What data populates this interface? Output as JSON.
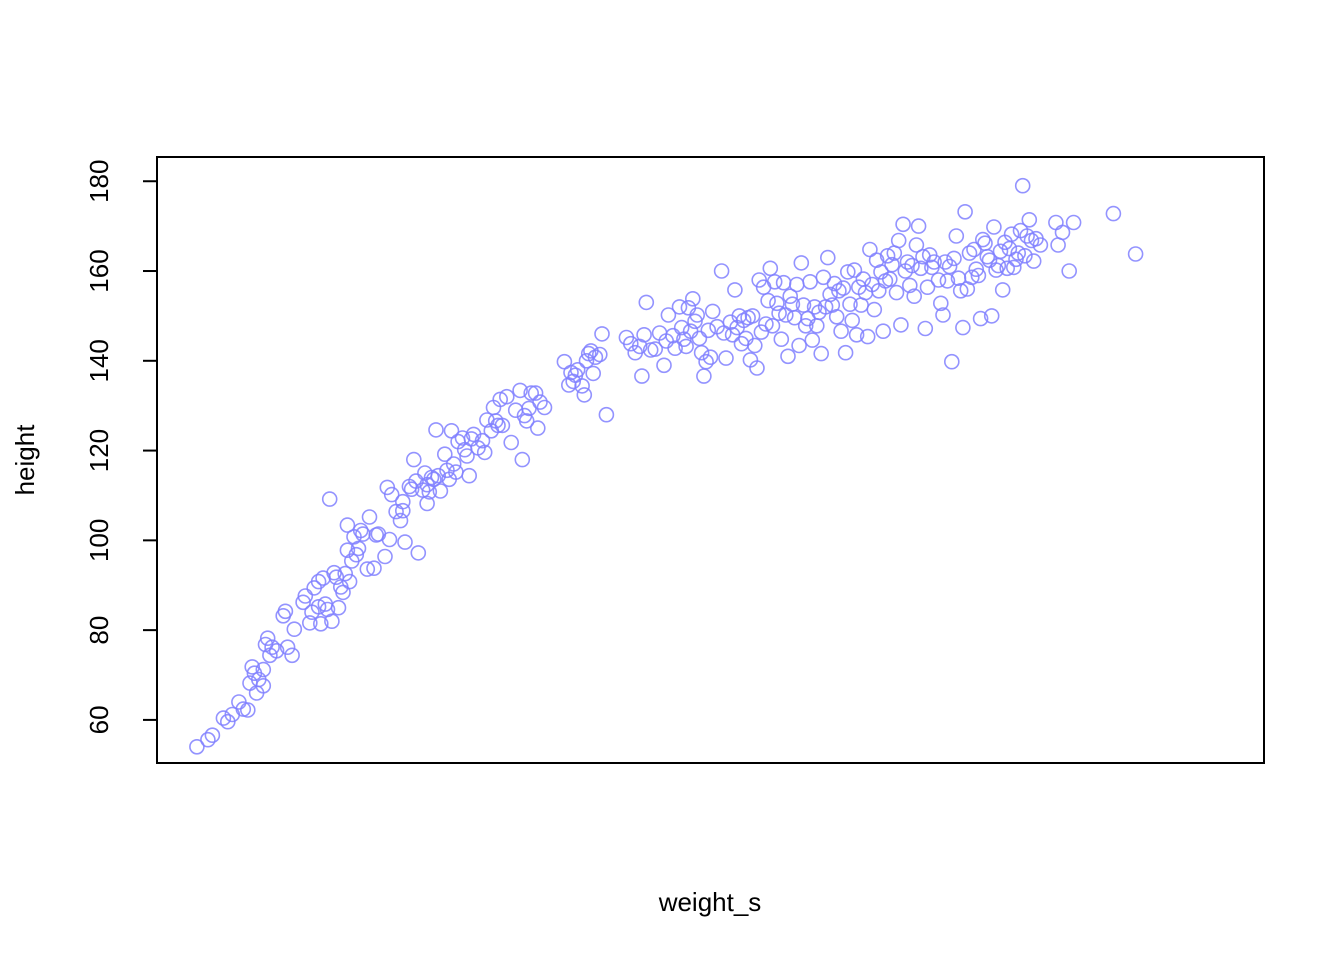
{
  "chart_data": {
    "type": "scatter",
    "title": "",
    "xlabel": "weight_s",
    "ylabel": "height",
    "xlim": [
      -2.2,
      2.8
    ],
    "ylim": [
      50.4,
      185.4
    ],
    "xticks_shown": false,
    "yticks": [
      60,
      80,
      100,
      120,
      140,
      160,
      180
    ],
    "grid": false,
    "legend": "none",
    "marker": "open-circle",
    "point_color": "#8080ff",
    "series": [
      {
        "points": [
          [
            -2.02,
            54.0
          ],
          [
            -1.97,
            55.6
          ],
          [
            -1.95,
            56.6
          ],
          [
            -1.9,
            60.4
          ],
          [
            -1.88,
            59.6
          ],
          [
            -1.86,
            61.2
          ],
          [
            -1.83,
            64.0
          ],
          [
            -1.81,
            62.4
          ],
          [
            -1.79,
            62.2
          ],
          [
            -1.78,
            68.2
          ],
          [
            -1.77,
            71.8
          ],
          [
            -1.76,
            70.4
          ],
          [
            -1.75,
            66.0
          ],
          [
            -1.74,
            69.0
          ],
          [
            -1.72,
            67.6
          ],
          [
            -1.72,
            71.2
          ],
          [
            -1.71,
            76.8
          ],
          [
            -1.7,
            78.2
          ],
          [
            -1.69,
            74.4
          ],
          [
            -1.68,
            76.2
          ],
          [
            -1.66,
            75.4
          ],
          [
            -1.63,
            83.2
          ],
          [
            -1.62,
            84.2
          ],
          [
            -1.61,
            76.2
          ],
          [
            -1.59,
            74.4
          ],
          [
            -1.58,
            80.2
          ],
          [
            -1.54,
            86.2
          ],
          [
            -1.53,
            87.6
          ],
          [
            -1.51,
            81.6
          ],
          [
            -1.5,
            84.0
          ],
          [
            -1.49,
            89.4
          ],
          [
            -1.47,
            85.2
          ],
          [
            -1.47,
            90.8
          ],
          [
            -1.46,
            81.4
          ],
          [
            -1.45,
            91.6
          ],
          [
            -1.44,
            85.8
          ],
          [
            -1.43,
            84.6
          ],
          [
            -1.42,
            109.2
          ],
          [
            -1.41,
            82.0
          ],
          [
            -1.4,
            92.8
          ],
          [
            -1.39,
            91.8
          ],
          [
            -1.38,
            85.0
          ],
          [
            -1.37,
            89.6
          ],
          [
            -1.36,
            88.4
          ],
          [
            -1.35,
            92.6
          ],
          [
            -1.34,
            97.8
          ],
          [
            -1.34,
            103.4
          ],
          [
            -1.33,
            90.8
          ],
          [
            -1.32,
            95.4
          ],
          [
            -1.31,
            100.8
          ],
          [
            -1.3,
            96.8
          ],
          [
            -1.29,
            98.2
          ],
          [
            -1.28,
            102.2
          ],
          [
            -1.27,
            101.4
          ],
          [
            -1.25,
            93.6
          ],
          [
            -1.24,
            105.2
          ],
          [
            -1.22,
            93.8
          ],
          [
            -1.21,
            101.2
          ],
          [
            -1.2,
            101.4
          ],
          [
            -1.17,
            96.4
          ],
          [
            -1.16,
            111.8
          ],
          [
            -1.15,
            100.2
          ],
          [
            -1.14,
            110.2
          ],
          [
            -1.12,
            106.4
          ],
          [
            -1.1,
            104.4
          ],
          [
            -1.09,
            106.6
          ],
          [
            -1.09,
            108.6
          ],
          [
            -1.08,
            99.6
          ],
          [
            -1.06,
            112.0
          ],
          [
            -1.05,
            111.4
          ],
          [
            -1.04,
            118.0
          ],
          [
            -1.03,
            113.2
          ],
          [
            -1.02,
            97.2
          ],
          [
            -1.0,
            111.2
          ],
          [
            -0.99,
            115.0
          ],
          [
            -0.98,
            108.2
          ],
          [
            -0.98,
            112.4
          ],
          [
            -0.97,
            110.8
          ],
          [
            -0.96,
            114.0
          ],
          [
            -0.95,
            113.6
          ],
          [
            -0.94,
            124.6
          ],
          [
            -0.93,
            114.4
          ],
          [
            -0.92,
            111.0
          ],
          [
            -0.9,
            119.2
          ],
          [
            -0.89,
            115.6
          ],
          [
            -0.88,
            113.6
          ],
          [
            -0.87,
            124.4
          ],
          [
            -0.86,
            117.0
          ],
          [
            -0.85,
            115.2
          ],
          [
            -0.84,
            122.0
          ],
          [
            -0.82,
            122.8
          ],
          [
            -0.81,
            120.2
          ],
          [
            -0.8,
            118.8
          ],
          [
            -0.79,
            114.4
          ],
          [
            -0.78,
            122.6
          ],
          [
            -0.77,
            123.6
          ],
          [
            -0.75,
            120.6
          ],
          [
            -0.73,
            122.2
          ],
          [
            -0.72,
            119.6
          ],
          [
            -0.71,
            126.8
          ],
          [
            -0.69,
            124.4
          ],
          [
            -0.68,
            129.6
          ],
          [
            -0.67,
            126.6
          ],
          [
            -0.66,
            125.6
          ],
          [
            -0.65,
            131.4
          ],
          [
            -0.64,
            125.6
          ],
          [
            -0.62,
            132.0
          ],
          [
            -0.6,
            121.8
          ],
          [
            -0.58,
            129.0
          ],
          [
            -0.56,
            133.4
          ],
          [
            -0.55,
            118.0
          ],
          [
            -0.54,
            127.8
          ],
          [
            -0.53,
            126.6
          ],
          [
            -0.52,
            129.4
          ],
          [
            -0.51,
            132.8
          ],
          [
            -0.49,
            132.8
          ],
          [
            -0.48,
            125.0
          ],
          [
            -0.47,
            130.8
          ],
          [
            -0.45,
            129.6
          ],
          [
            -0.36,
            139.8
          ],
          [
            -0.34,
            134.6
          ],
          [
            -0.33,
            137.4
          ],
          [
            -0.32,
            135.4
          ],
          [
            -0.31,
            136.8
          ],
          [
            -0.3,
            138.0
          ],
          [
            -0.28,
            134.4
          ],
          [
            -0.27,
            132.4
          ],
          [
            -0.26,
            140.0
          ],
          [
            -0.25,
            141.6
          ],
          [
            -0.24,
            142.2
          ],
          [
            -0.23,
            137.2
          ],
          [
            -0.22,
            140.8
          ],
          [
            -0.2,
            141.4
          ],
          [
            -0.19,
            146.0
          ],
          [
            -0.17,
            128.0
          ],
          [
            -0.08,
            145.2
          ],
          [
            -0.06,
            143.8
          ],
          [
            -0.04,
            141.8
          ],
          [
            -0.02,
            143.2
          ],
          [
            -0.01,
            136.6
          ],
          [
            0.0,
            145.8
          ],
          [
            0.01,
            153.0
          ],
          [
            0.03,
            142.4
          ],
          [
            0.05,
            142.6
          ],
          [
            0.07,
            146.2
          ],
          [
            0.09,
            139.0
          ],
          [
            0.1,
            144.4
          ],
          [
            0.11,
            150.2
          ],
          [
            0.13,
            145.6
          ],
          [
            0.14,
            142.8
          ],
          [
            0.16,
            152.0
          ],
          [
            0.17,
            147.4
          ],
          [
            0.18,
            144.8
          ],
          [
            0.19,
            143.2
          ],
          [
            0.2,
            151.8
          ],
          [
            0.21,
            146.6
          ],
          [
            0.22,
            153.8
          ],
          [
            0.23,
            148.8
          ],
          [
            0.24,
            150.2
          ],
          [
            0.25,
            145.0
          ],
          [
            0.26,
            141.8
          ],
          [
            0.27,
            136.6
          ],
          [
            0.28,
            139.8
          ],
          [
            0.29,
            146.8
          ],
          [
            0.3,
            140.8
          ],
          [
            0.31,
            151.0
          ],
          [
            0.33,
            147.6
          ],
          [
            0.35,
            160.0
          ],
          [
            0.36,
            146.2
          ],
          [
            0.37,
            140.6
          ],
          [
            0.39,
            148.6
          ],
          [
            0.4,
            145.8
          ],
          [
            0.41,
            155.8
          ],
          [
            0.42,
            147.4
          ],
          [
            0.43,
            150.0
          ],
          [
            0.44,
            143.8
          ],
          [
            0.45,
            149.0
          ],
          [
            0.46,
            145.0
          ],
          [
            0.47,
            149.6
          ],
          [
            0.48,
            140.2
          ],
          [
            0.49,
            150.0
          ],
          [
            0.5,
            143.4
          ],
          [
            0.51,
            138.4
          ],
          [
            0.52,
            158.0
          ],
          [
            0.53,
            146.4
          ],
          [
            0.54,
            156.4
          ],
          [
            0.55,
            148.2
          ],
          [
            0.56,
            153.4
          ],
          [
            0.57,
            160.6
          ],
          [
            0.58,
            147.8
          ],
          [
            0.59,
            157.6
          ],
          [
            0.6,
            152.8
          ],
          [
            0.61,
            150.6
          ],
          [
            0.62,
            144.8
          ],
          [
            0.63,
            157.4
          ],
          [
            0.64,
            150.2
          ],
          [
            0.65,
            141.0
          ],
          [
            0.66,
            154.4
          ],
          [
            0.67,
            152.6
          ],
          [
            0.68,
            149.6
          ],
          [
            0.69,
            157.0
          ],
          [
            0.7,
            143.4
          ],
          [
            0.71,
            161.8
          ],
          [
            0.72,
            152.4
          ],
          [
            0.73,
            147.8
          ],
          [
            0.74,
            149.4
          ],
          [
            0.75,
            157.6
          ],
          [
            0.76,
            144.6
          ],
          [
            0.77,
            152.0
          ],
          [
            0.78,
            147.8
          ],
          [
            0.79,
            150.8
          ],
          [
            0.8,
            141.6
          ],
          [
            0.81,
            158.6
          ],
          [
            0.82,
            152.0
          ],
          [
            0.83,
            163.0
          ],
          [
            0.84,
            154.8
          ],
          [
            0.85,
            152.4
          ],
          [
            0.86,
            157.2
          ],
          [
            0.87,
            149.8
          ],
          [
            0.88,
            155.6
          ],
          [
            0.89,
            146.6
          ],
          [
            0.9,
            156.2
          ],
          [
            0.91,
            141.8
          ],
          [
            0.92,
            159.8
          ],
          [
            0.93,
            152.6
          ],
          [
            0.94,
            149.0
          ],
          [
            0.95,
            160.2
          ],
          [
            0.96,
            145.8
          ],
          [
            0.97,
            156.4
          ],
          [
            0.98,
            152.4
          ],
          [
            0.99,
            158.2
          ],
          [
            1.0,
            155.2
          ],
          [
            1.01,
            145.4
          ],
          [
            1.02,
            164.8
          ],
          [
            1.03,
            157.0
          ],
          [
            1.04,
            151.4
          ],
          [
            1.05,
            162.4
          ],
          [
            1.06,
            155.6
          ],
          [
            1.07,
            159.8
          ],
          [
            1.08,
            146.6
          ],
          [
            1.09,
            157.8
          ],
          [
            1.1,
            163.4
          ],
          [
            1.11,
            158.2
          ],
          [
            1.12,
            161.4
          ],
          [
            1.13,
            164.0
          ],
          [
            1.14,
            155.2
          ],
          [
            1.15,
            166.8
          ],
          [
            1.16,
            148.0
          ],
          [
            1.17,
            170.4
          ],
          [
            1.18,
            160.0
          ],
          [
            1.19,
            162.0
          ],
          [
            1.2,
            156.8
          ],
          [
            1.21,
            161.2
          ],
          [
            1.22,
            154.4
          ],
          [
            1.23,
            165.8
          ],
          [
            1.24,
            170.0
          ],
          [
            1.25,
            160.6
          ],
          [
            1.26,
            163.2
          ],
          [
            1.27,
            147.2
          ],
          [
            1.28,
            156.4
          ],
          [
            1.29,
            163.6
          ],
          [
            1.3,
            160.8
          ],
          [
            1.31,
            162.0
          ],
          [
            1.33,
            158.0
          ],
          [
            1.34,
            152.8
          ],
          [
            1.35,
            150.2
          ],
          [
            1.36,
            162.0
          ],
          [
            1.37,
            157.8
          ],
          [
            1.38,
            161.0
          ],
          [
            1.39,
            139.8
          ],
          [
            1.4,
            162.8
          ],
          [
            1.41,
            167.8
          ],
          [
            1.42,
            158.4
          ],
          [
            1.43,
            155.6
          ],
          [
            1.44,
            147.4
          ],
          [
            1.45,
            173.2
          ],
          [
            1.46,
            156.0
          ],
          [
            1.47,
            164.0
          ],
          [
            1.48,
            158.6
          ],
          [
            1.49,
            164.8
          ],
          [
            1.5,
            160.4
          ],
          [
            1.51,
            159.0
          ],
          [
            1.52,
            149.4
          ],
          [
            1.53,
            167.0
          ],
          [
            1.54,
            166.2
          ],
          [
            1.55,
            163.2
          ],
          [
            1.56,
            162.4
          ],
          [
            1.57,
            150.0
          ],
          [
            1.58,
            169.8
          ],
          [
            1.59,
            160.2
          ],
          [
            1.6,
            161.2
          ],
          [
            1.61,
            164.4
          ],
          [
            1.62,
            155.8
          ],
          [
            1.63,
            166.4
          ],
          [
            1.64,
            160.6
          ],
          [
            1.65,
            165.0
          ],
          [
            1.66,
            168.2
          ],
          [
            1.67,
            160.8
          ],
          [
            1.68,
            162.6
          ],
          [
            1.69,
            164.0
          ],
          [
            1.7,
            169.0
          ],
          [
            1.71,
            179.0
          ],
          [
            1.72,
            163.4
          ],
          [
            1.73,
            167.8
          ],
          [
            1.74,
            171.4
          ],
          [
            1.75,
            166.8
          ],
          [
            1.76,
            162.2
          ],
          [
            1.77,
            167.2
          ],
          [
            1.79,
            165.8
          ],
          [
            1.86,
            170.8
          ],
          [
            1.87,
            165.8
          ],
          [
            1.89,
            168.6
          ],
          [
            1.92,
            160.0
          ],
          [
            1.94,
            170.8
          ],
          [
            2.12,
            172.8
          ],
          [
            2.22,
            163.8
          ]
        ]
      }
    ]
  }
}
